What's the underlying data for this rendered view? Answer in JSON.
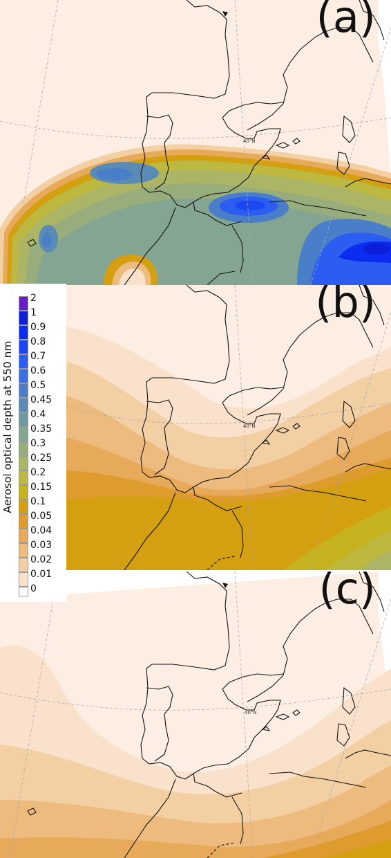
{
  "panels": [
    {
      "id": "a",
      "label": "(a)"
    },
    {
      "id": "b",
      "label": "(b)"
    },
    {
      "id": "c",
      "label": "(c)"
    }
  ],
  "latitude_label": "40°N",
  "legend": {
    "title": "Aerosol optical depth at 550 nm",
    "levels": [
      {
        "value": "2",
        "color": "#6a1fc6"
      },
      {
        "value": "1",
        "color": "#0a1fd6"
      },
      {
        "value": "0.9",
        "color": "#0b2cf0"
      },
      {
        "value": "0.8",
        "color": "#1c46f2"
      },
      {
        "value": "0.7",
        "color": "#2a5df0"
      },
      {
        "value": "0.6",
        "color": "#3a6fe0"
      },
      {
        "value": "0.5",
        "color": "#4a7ec8"
      },
      {
        "value": "0.45",
        "color": "#5a8bb4"
      },
      {
        "value": "0.4",
        "color": "#6c9aa2"
      },
      {
        "value": "0.35",
        "color": "#83a592"
      },
      {
        "value": "0.3",
        "color": "#98ad7c"
      },
      {
        "value": "0.25",
        "color": "#acb466"
      },
      {
        "value": "0.2",
        "color": "#bdb840"
      },
      {
        "value": "0.15",
        "color": "#c6b21e"
      },
      {
        "value": "0.1",
        "color": "#d49f10"
      },
      {
        "value": "0.05",
        "color": "#df9c2e"
      },
      {
        "value": "0.04",
        "color": "#e6aa5a"
      },
      {
        "value": "0.03",
        "color": "#edbb7e"
      },
      {
        "value": "0.02",
        "color": "#f3cfa4"
      },
      {
        "value": "0.01",
        "color": "#f9e1cc"
      },
      {
        "value": "0",
        "color": "#ffffff"
      }
    ]
  }
}
